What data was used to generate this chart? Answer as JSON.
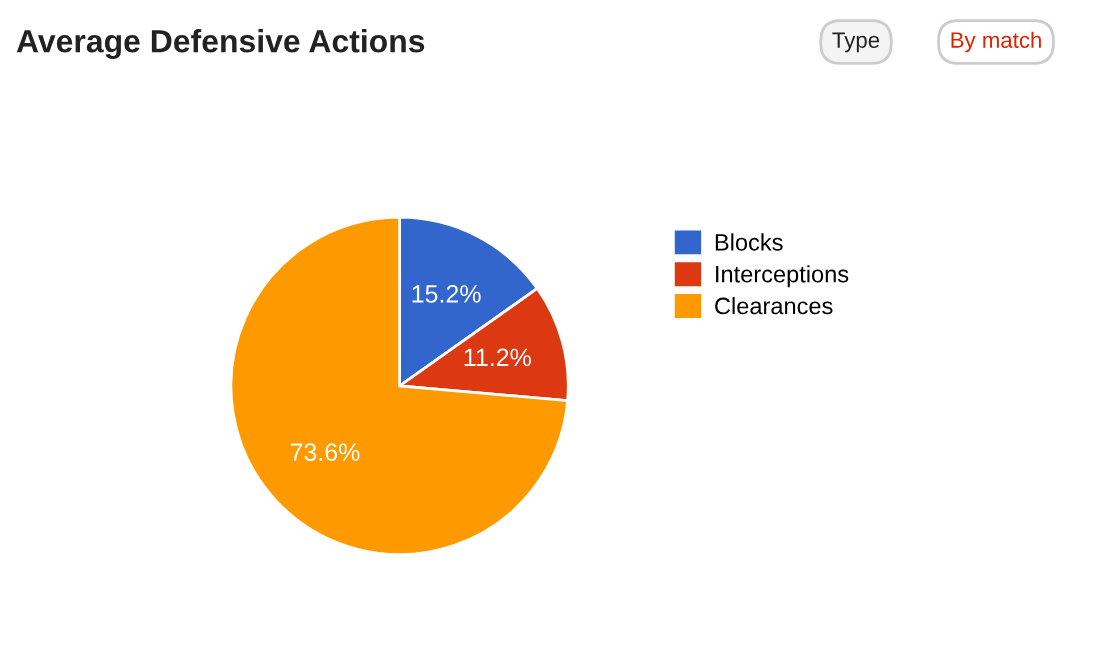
{
  "chart_data": {
    "type": "pie",
    "title": "Average Defensive Actions",
    "categories": [
      "Blocks",
      "Interceptions",
      "Clearances"
    ],
    "values": [
      15.2,
      11.2,
      73.6
    ],
    "colors": [
      "#3366cc",
      "#dc3912",
      "#ff9900"
    ],
    "value_labels": [
      "15.2%",
      "11.2%",
      "73.6%"
    ],
    "legend": "right",
    "annotations": [
      "Type",
      "By match"
    ]
  }
}
